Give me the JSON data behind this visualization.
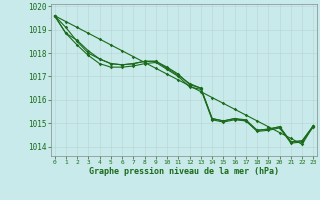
{
  "title": "Graphe pression niveau de la mer (hPa)",
  "background_color": "#c8eaea",
  "grid_color": "#c0dcdc",
  "line_color": "#1a6b1a",
  "x_ticks": [
    0,
    1,
    2,
    3,
    4,
    5,
    6,
    7,
    8,
    9,
    10,
    11,
    12,
    13,
    14,
    15,
    16,
    17,
    18,
    19,
    20,
    21,
    22,
    23
  ],
  "ylim": [
    1013.6,
    1020.1
  ],
  "yticks": [
    1014,
    1015,
    1016,
    1017,
    1018,
    1019,
    1020
  ],
  "xlim": [
    -0.3,
    23.3
  ],
  "series1": [
    1019.6,
    1019.1,
    1018.5,
    1018.0,
    1017.75,
    1017.55,
    1017.5,
    1017.55,
    1017.65,
    1017.65,
    1017.35,
    1017.05,
    1016.7,
    1016.5,
    1015.2,
    1015.1,
    1015.2,
    1015.1,
    1014.7,
    1014.75,
    1014.85,
    1014.2,
    1014.25,
    1014.9
  ],
  "series2": [
    1019.6,
    1018.85,
    1018.35,
    1017.9,
    1017.55,
    1017.4,
    1017.4,
    1017.45,
    1017.55,
    1017.6,
    1017.3,
    1017.0,
    1016.55,
    1016.45,
    1015.15,
    1015.05,
    1015.15,
    1015.1,
    1014.65,
    1014.7,
    1014.8,
    1014.15,
    1014.2,
    1014.85
  ],
  "series3": [
    1019.6,
    1018.85,
    1018.55,
    1018.1,
    1017.75,
    1017.55,
    1017.5,
    1017.55,
    1017.65,
    1017.65,
    1017.4,
    1017.1,
    1016.65,
    1016.5,
    1015.2,
    1015.1,
    1015.2,
    1015.15,
    1014.7,
    1014.75,
    1014.85,
    1014.2,
    1014.25,
    1014.9
  ],
  "series_straight": [
    1019.6,
    1019.35,
    1019.1,
    1018.85,
    1018.6,
    1018.35,
    1018.1,
    1017.85,
    1017.6,
    1017.35,
    1017.1,
    1016.85,
    1016.6,
    1016.35,
    1016.1,
    1015.85,
    1015.6,
    1015.35,
    1015.1,
    1014.85,
    1014.6,
    1014.35,
    1014.1,
    1014.9
  ]
}
